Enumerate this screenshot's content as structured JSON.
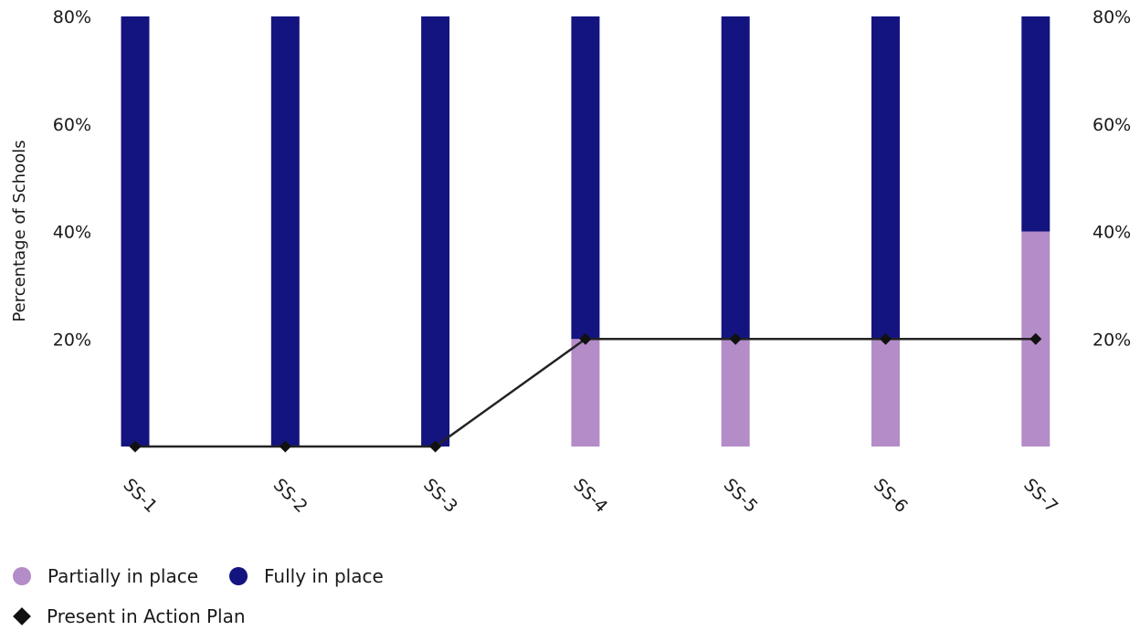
{
  "chart_data": {
    "type": "bar",
    "stacked": true,
    "categories": [
      "SS-1",
      "SS-2",
      "SS-3",
      "SS-4",
      "SS-5",
      "SS-6",
      "SS-7"
    ],
    "series": [
      {
        "name": "Partially in place",
        "kind": "bar",
        "color": "#b48cc8",
        "values": [
          0,
          0,
          0,
          20,
          20,
          20,
          40
        ]
      },
      {
        "name": "Fully in place",
        "kind": "bar",
        "color": "#141480",
        "values": [
          80,
          80,
          80,
          60,
          60,
          60,
          40
        ]
      },
      {
        "name": "Present in Action Plan",
        "kind": "line",
        "color": "#222222",
        "values": [
          0,
          0,
          0,
          20,
          20,
          20,
          20
        ]
      }
    ],
    "ylabel": "Percentage of Schools",
    "ylim": [
      0,
      80
    ],
    "yticks": [
      "20%",
      "40%",
      "60%",
      "80%"
    ],
    "ytick_values": [
      20,
      40,
      60,
      80
    ],
    "grid": false,
    "legend_position": "bottom-left"
  },
  "legend": {
    "partial": "Partially in place",
    "fully": "Fully in place",
    "plan": "Present in Action Plan"
  }
}
